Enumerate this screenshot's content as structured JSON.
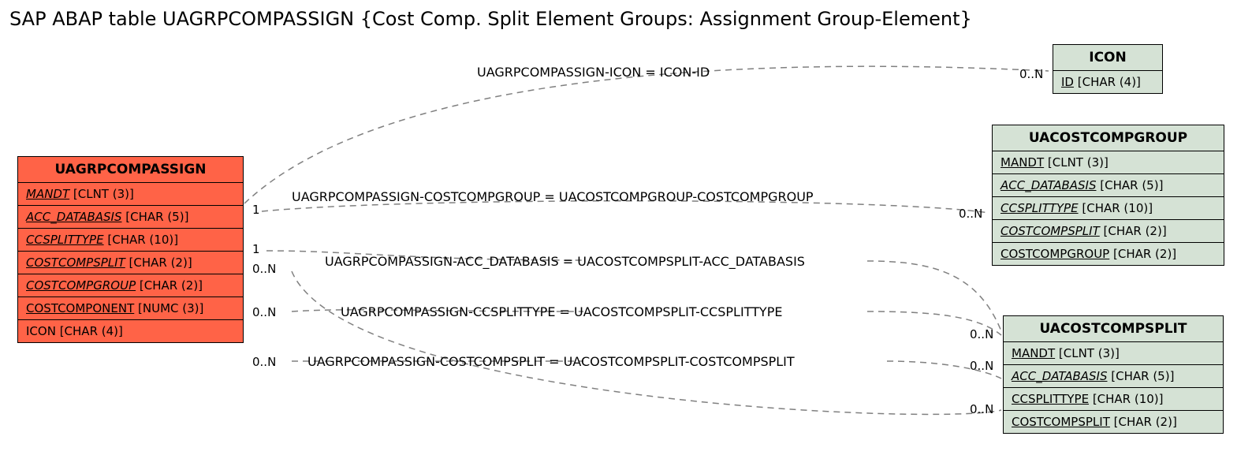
{
  "title": "SAP ABAP table UAGRPCOMPASSIGN {Cost Comp. Split Element Groups: Assignment Group-Element}",
  "entities": {
    "main": {
      "name": "UAGRPCOMPASSIGN",
      "bg": "#ff6347",
      "fields": [
        {
          "name": "MANDT",
          "type": "[CLNT (3)]",
          "style": "key"
        },
        {
          "name": "ACC_DATABASIS",
          "type": "[CHAR (5)]",
          "style": "key"
        },
        {
          "name": "CCSPLITTYPE",
          "type": "[CHAR (10)]",
          "style": "key"
        },
        {
          "name": "COSTCOMPSPLIT",
          "type": "[CHAR (2)]",
          "style": "key"
        },
        {
          "name": "COSTCOMPGROUP",
          "type": "[CHAR (2)]",
          "style": "key"
        },
        {
          "name": "COSTCOMPONENT",
          "type": "[NUMC (3)]",
          "style": "keyplain"
        },
        {
          "name": "ICON",
          "type": "[CHAR (4)]",
          "style": "plain"
        }
      ]
    },
    "icon": {
      "name": "ICON",
      "bg": "#d5e2d5",
      "fields": [
        {
          "name": "ID",
          "type": "[CHAR (4)]",
          "style": "keyplain"
        }
      ]
    },
    "group": {
      "name": "UACOSTCOMPGROUP",
      "bg": "#d5e2d5",
      "fields": [
        {
          "name": "MANDT",
          "type": "[CLNT (3)]",
          "style": "keyplain"
        },
        {
          "name": "ACC_DATABASIS",
          "type": "[CHAR (5)]",
          "style": "key"
        },
        {
          "name": "CCSPLITTYPE",
          "type": "[CHAR (10)]",
          "style": "key"
        },
        {
          "name": "COSTCOMPSPLIT",
          "type": "[CHAR (2)]",
          "style": "key"
        },
        {
          "name": "COSTCOMPGROUP",
          "type": "[CHAR (2)]",
          "style": "keyplain"
        }
      ]
    },
    "split": {
      "name": "UACOSTCOMPSPLIT",
      "bg": "#d5e2d5",
      "fields": [
        {
          "name": "MANDT",
          "type": "[CLNT (3)]",
          "style": "keyplain"
        },
        {
          "name": "ACC_DATABASIS",
          "type": "[CHAR (5)]",
          "style": "key"
        },
        {
          "name": "CCSPLITTYPE",
          "type": "[CHAR (10)]",
          "style": "keyplain"
        },
        {
          "name": "COSTCOMPSPLIT",
          "type": "[CHAR (2)]",
          "style": "keyplain"
        }
      ]
    }
  },
  "relations": {
    "r1": {
      "label": "UAGRPCOMPASSIGN-ICON = ICON-ID",
      "leftCard": "",
      "rightCard": "0..N"
    },
    "r2": {
      "label": "UAGRPCOMPASSIGN-COSTCOMPGROUP = UACOSTCOMPGROUP-COSTCOMPGROUP",
      "leftCard": "1",
      "rightCard": "0..N"
    },
    "r3": {
      "label": "UAGRPCOMPASSIGN-ACC_DATABASIS = UACOSTCOMPSPLIT-ACC_DATABASIS",
      "leftCard": "1",
      "rightCard": ""
    },
    "r4": {
      "label": "UAGRPCOMPASSIGN-CCSPLITTYPE = UACOSTCOMPSPLIT-CCSPLITTYPE",
      "leftCard": "0..N",
      "rightCard": "0..N"
    },
    "r5": {
      "label": "UAGRPCOMPASSIGN-COSTCOMPSPLIT = UACOSTCOMPSPLIT-COSTCOMPSPLIT",
      "leftCard": "0..N",
      "rightCard": "0..N"
    },
    "r6": {
      "leftCard": "0..N",
      "rightCard": "0..N"
    }
  }
}
